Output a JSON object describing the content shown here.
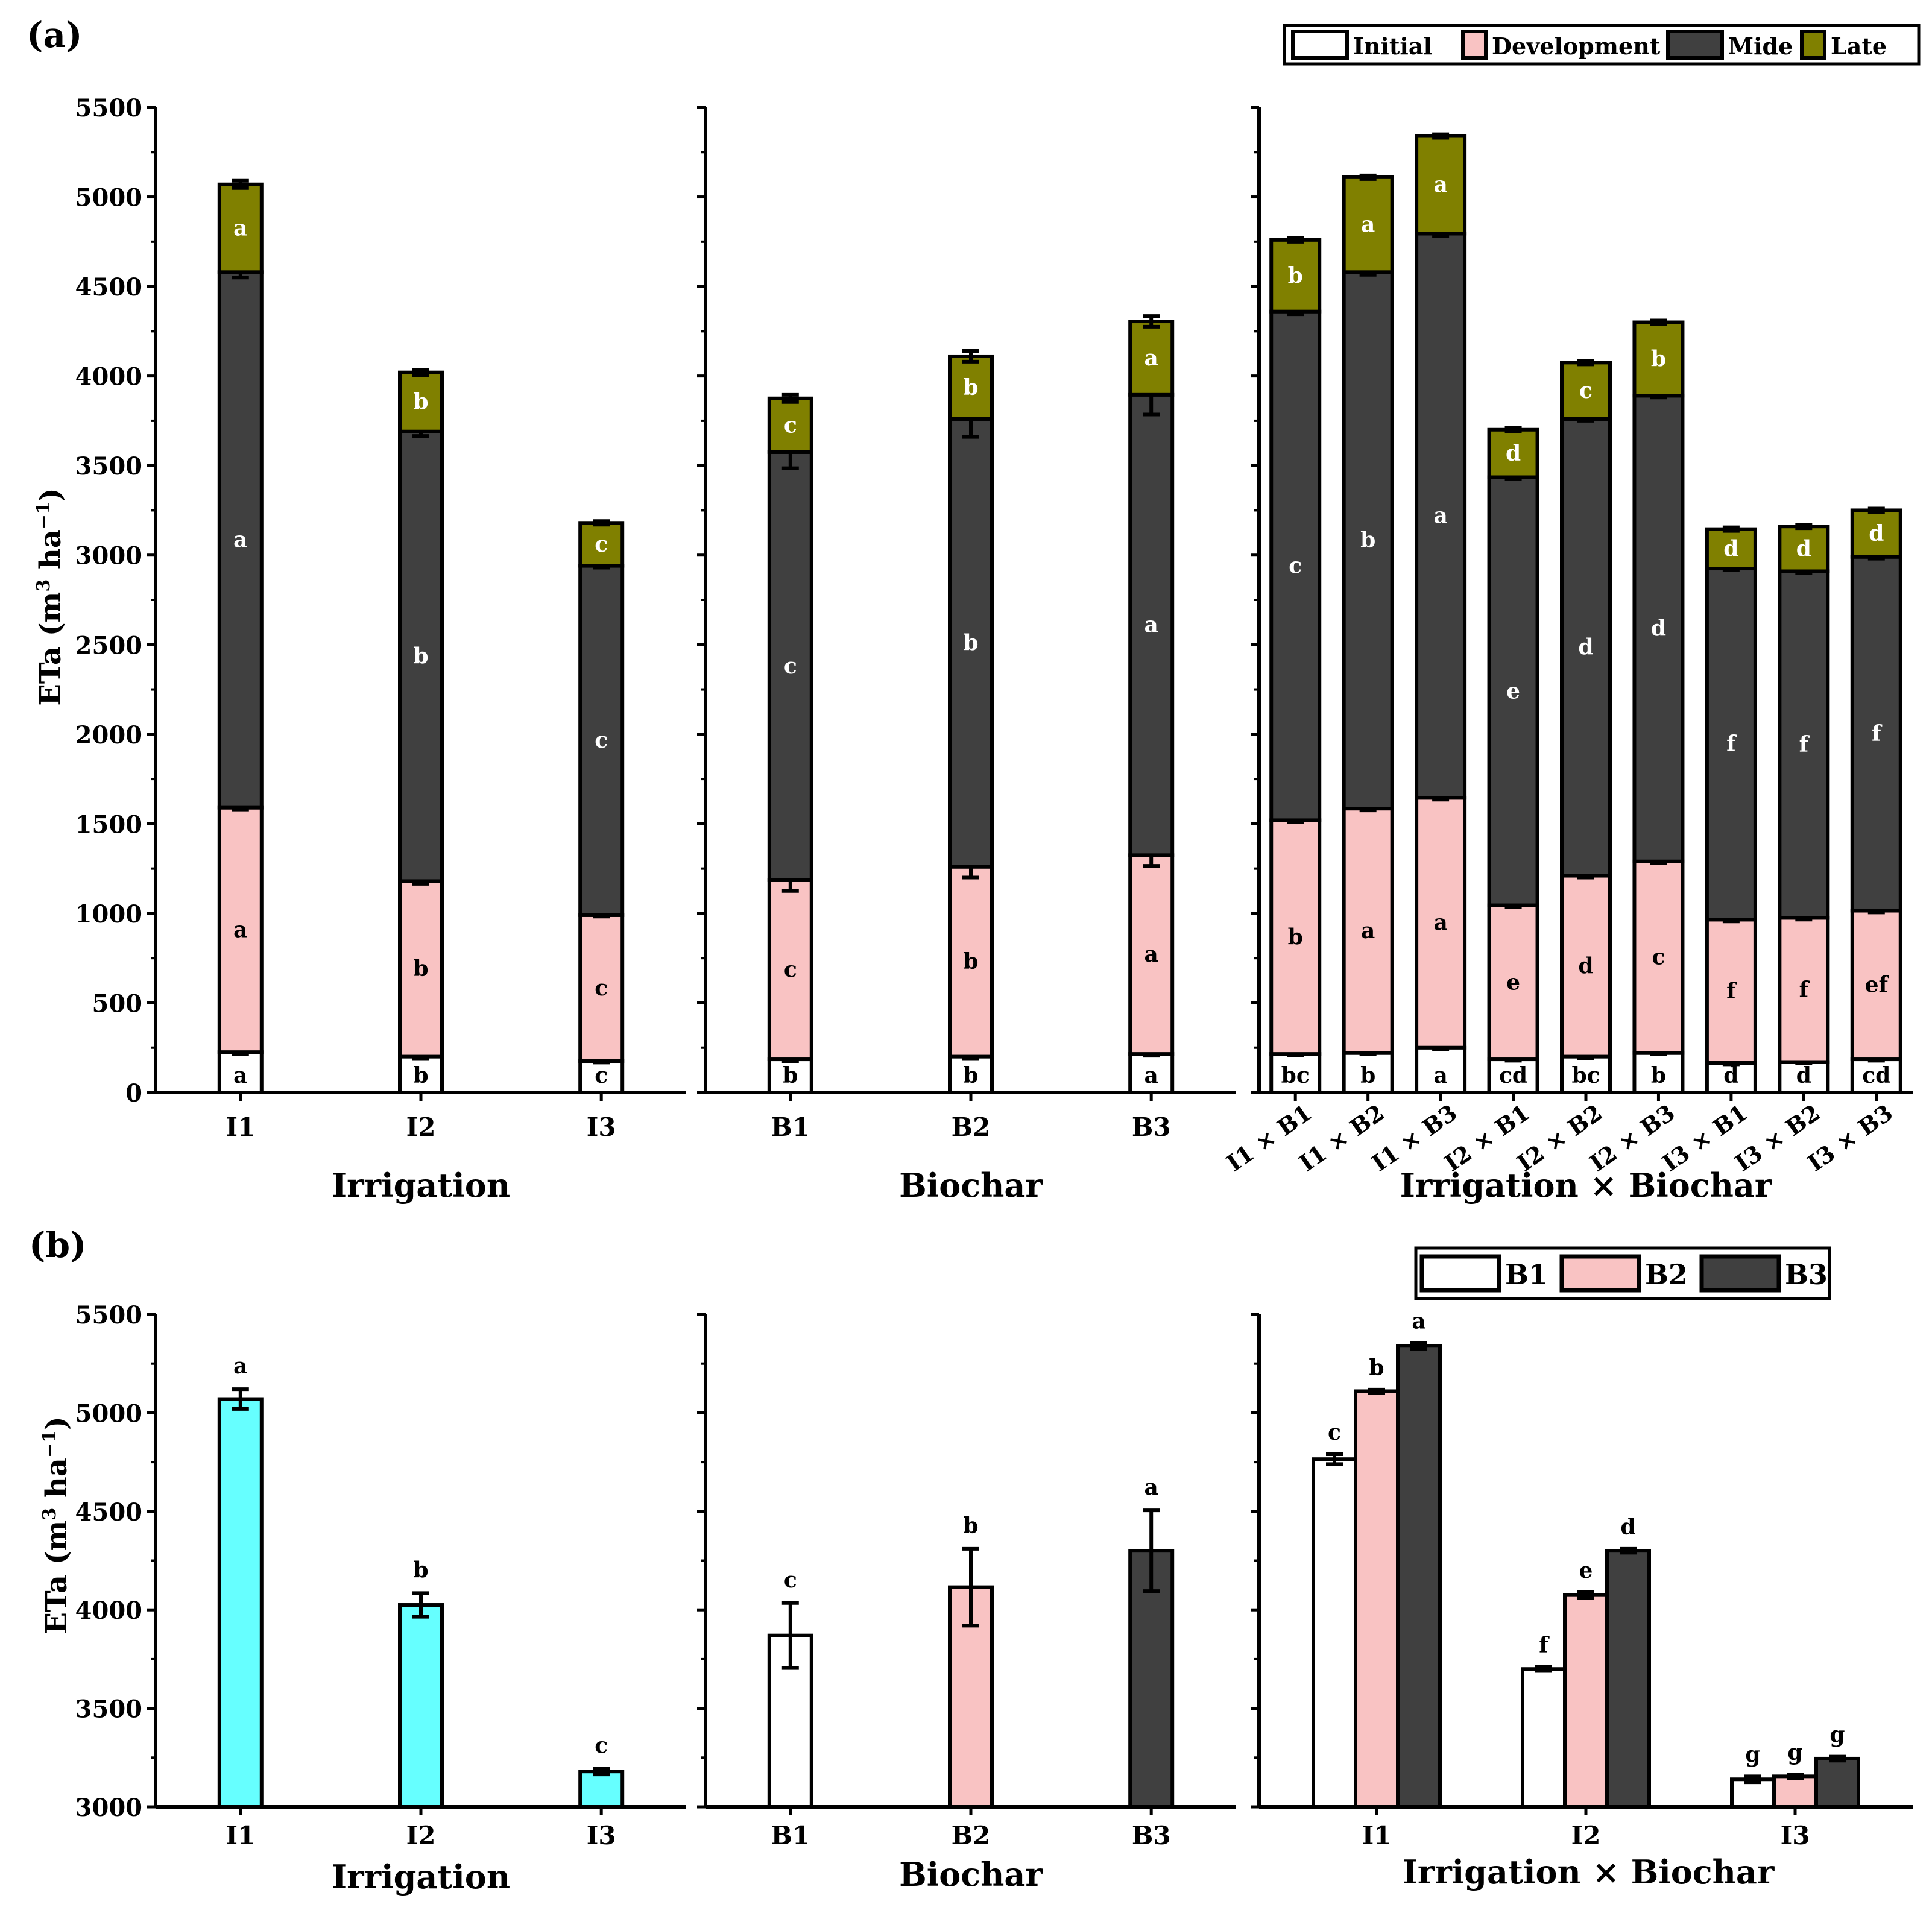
{
  "panel_labels": {
    "a": "(a)",
    "b": "(b)"
  },
  "y_axis_label": {
    "main": "ETa (m",
    "sup1": "3",
    "mid": " ha",
    "sup2": "−1",
    "end": ")"
  },
  "colors": {
    "Initial": "#ffffff",
    "Development": "#f9c3c3",
    "Mide": "#404040",
    "Late": "#808000",
    "B1": "#ffffff",
    "B2": "#f9c3c3",
    "B3": "#404040",
    "irrigation_bar": "#66ffff"
  },
  "chart_data": [
    {
      "type": "bar",
      "stacked": true,
      "panel": "a1",
      "title": "",
      "xlabel": "Irrigation",
      "ylabel": "ETa (m3 ha-1)",
      "ylim": [
        0,
        5500
      ],
      "yticks": [
        "0",
        "500",
        "1000",
        "1500",
        "2000",
        "2500",
        "3000",
        "3500",
        "4000",
        "4500",
        "5000",
        "5500"
      ],
      "categories": [
        "I1",
        "I2",
        "I3"
      ],
      "series": [
        {
          "name": "Initial",
          "values": [
            225,
            200,
            175
          ],
          "errors": [
            10,
            10,
            8
          ],
          "letters": [
            "a",
            "b",
            "c"
          ]
        },
        {
          "name": "Development",
          "values": [
            1365,
            980,
            815
          ],
          "errors": [
            10,
            15,
            8
          ],
          "letters": [
            "a",
            "b",
            "c"
          ]
        },
        {
          "name": "Mide",
          "values": [
            2990,
            2510,
            1950
          ],
          "errors": [
            30,
            25,
            10
          ],
          "letters": [
            "a",
            "b",
            "c"
          ]
        },
        {
          "name": "Late",
          "values": [
            490,
            330,
            240
          ],
          "errors": [
            20,
            15,
            10
          ],
          "letters": [
            "a",
            "b",
            "c"
          ]
        }
      ]
    },
    {
      "type": "bar",
      "stacked": true,
      "panel": "a2",
      "title": "",
      "xlabel": "Biochar",
      "ylabel": "",
      "ylim": [
        0,
        5500
      ],
      "categories": [
        "B1",
        "B2",
        "B3"
      ],
      "series": [
        {
          "name": "Initial",
          "values": [
            185,
            200,
            215
          ],
          "errors": [
            10,
            10,
            10
          ],
          "letters": [
            "b",
            "b",
            "a"
          ]
        },
        {
          "name": "Development",
          "values": [
            1000,
            1060,
            1110
          ],
          "errors": [
            60,
            60,
            60
          ],
          "letters": [
            "c",
            "b",
            "a"
          ]
        },
        {
          "name": "Mide",
          "values": [
            2390,
            2500,
            2570
          ],
          "errors": [
            90,
            100,
            110
          ],
          "letters": [
            "c",
            "b",
            "a"
          ]
        },
        {
          "name": "Late",
          "values": [
            300,
            350,
            410
          ],
          "errors": [
            20,
            30,
            30
          ],
          "letters": [
            "c",
            "b",
            "a"
          ]
        }
      ]
    },
    {
      "type": "bar",
      "stacked": true,
      "panel": "a3",
      "title": "",
      "xlabel": "Irrigation × Biochar",
      "ylabel": "",
      "ylim": [
        0,
        5500
      ],
      "categories": [
        "I1 × B1",
        "I1 × B2",
        "I1 × B3",
        "I2 × B1",
        "I2 × B2",
        "I2 × B3",
        "I3 × B1",
        "I3 × B2",
        "I3 × B3"
      ],
      "series": [
        {
          "name": "Initial",
          "values": [
            215,
            220,
            250,
            185,
            200,
            220,
            165,
            170,
            185
          ],
          "errors": [
            8,
            8,
            8,
            8,
            8,
            8,
            8,
            8,
            8
          ],
          "letters": [
            "bc",
            "b",
            "a",
            "cd",
            "bc",
            "b",
            "d",
            "d",
            "cd"
          ]
        },
        {
          "name": "Development",
          "values": [
            1305,
            1365,
            1395,
            860,
            1010,
            1070,
            800,
            805,
            830
          ],
          "errors": [
            10,
            10,
            10,
            10,
            10,
            10,
            10,
            10,
            10
          ],
          "letters": [
            "b",
            "a",
            "a",
            "e",
            "d",
            "c",
            "f",
            "f",
            "ef"
          ]
        },
        {
          "name": "Mide",
          "values": [
            2840,
            2995,
            3150,
            2390,
            2550,
            2600,
            1960,
            1935,
            1975
          ],
          "errors": [
            15,
            15,
            15,
            10,
            10,
            10,
            10,
            10,
            10
          ],
          "letters": [
            "c",
            "b",
            "a",
            "e",
            "d",
            "d",
            "f",
            "f",
            "f"
          ]
        },
        {
          "name": "Late",
          "values": [
            400,
            530,
            545,
            265,
            315,
            410,
            220,
            250,
            260
          ],
          "errors": [
            10,
            10,
            10,
            10,
            10,
            10,
            10,
            10,
            10
          ],
          "letters": [
            "b",
            "a",
            "a",
            "d",
            "c",
            "b",
            "d",
            "d",
            "d"
          ]
        }
      ]
    },
    {
      "type": "bar",
      "panel": "b1",
      "title": "",
      "xlabel": "Irrigation",
      "ylabel": "ETa (m3 ha-1)",
      "ylim": [
        3000,
        5500
      ],
      "yticks": [
        "3000",
        "3500",
        "4000",
        "4500",
        "5000",
        "5500"
      ],
      "categories": [
        "I1",
        "I2",
        "I3"
      ],
      "values": [
        5070,
        4025,
        3180
      ],
      "errors": [
        50,
        60,
        15
      ],
      "letters": [
        "a",
        "b",
        "c"
      ]
    },
    {
      "type": "bar",
      "panel": "b2",
      "title": "",
      "xlabel": "Biochar",
      "ylabel": "",
      "ylim": [
        3000,
        5500
      ],
      "categories": [
        "B1",
        "B2",
        "B3"
      ],
      "values": [
        3870,
        4115,
        4300
      ],
      "errors": [
        165,
        195,
        205
      ],
      "letters": [
        "c",
        "b",
        "a"
      ]
    },
    {
      "type": "bar",
      "panel": "b3",
      "title": "",
      "xlabel": "Irrigation × Biochar",
      "ylabel": "",
      "ylim": [
        3000,
        5500
      ],
      "categories": [
        "I1",
        "I2",
        "I3"
      ],
      "series": [
        {
          "name": "B1",
          "values": [
            4765,
            3700,
            3140
          ],
          "errors": [
            25,
            10,
            15
          ],
          "letters": [
            "c",
            "f",
            "g"
          ]
        },
        {
          "name": "B2",
          "values": [
            5110,
            4075,
            3155
          ],
          "errors": [
            8,
            15,
            10
          ],
          "letters": [
            "b",
            "e",
            "g"
          ]
        },
        {
          "name": "B3",
          "values": [
            5340,
            4300,
            3245
          ],
          "errors": [
            15,
            10,
            10
          ],
          "letters": [
            "a",
            "d",
            "g"
          ]
        }
      ]
    }
  ],
  "legend_a": [
    "Initial",
    "Development",
    "Mide",
    "Late"
  ],
  "legend_b": [
    "B1",
    "B2",
    "B3"
  ]
}
